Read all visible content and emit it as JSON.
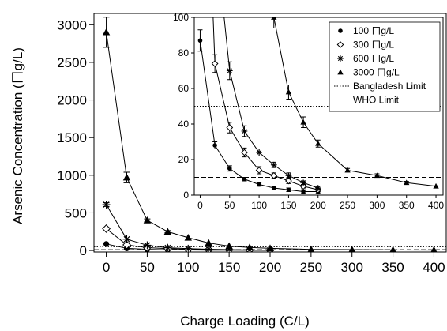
{
  "chart_data": {
    "type": "scatter",
    "xlabel": "Charge Loading (C/L)",
    "ylabel": "Arsenic Concentration (ㄇg/L)",
    "xlim": [
      -15,
      415
    ],
    "ylim": [
      -20,
      3150
    ],
    "xticks": [
      0,
      50,
      100,
      150,
      200,
      250,
      300,
      350,
      400
    ],
    "yticks": [
      0,
      500,
      1000,
      1500,
      2000,
      2500,
      3000
    ],
    "series": [
      {
        "name": "100 ㄇg/L",
        "marker": "circle",
        "x": [
          0,
          25,
          50,
          75,
          100,
          125,
          150,
          175,
          200
        ],
        "y": [
          87,
          28,
          15,
          9,
          6,
          4,
          3,
          2,
          2
        ],
        "err": [
          6,
          2,
          1.5,
          1,
          1,
          1,
          1,
          1,
          1
        ]
      },
      {
        "name": "300 ㄇg/L",
        "marker": "diamond-open",
        "x": [
          0,
          25,
          50,
          75,
          100,
          125,
          150,
          175,
          200
        ],
        "y": [
          290,
          74,
          38,
          24,
          14,
          11,
          8,
          5,
          3
        ],
        "err": [
          15,
          5,
          3,
          2.5,
          2,
          1.5,
          1.5,
          1,
          1
        ]
      },
      {
        "name": "600 ㄇg/L",
        "marker": "asterisk",
        "x": [
          0,
          25,
          50,
          75,
          100,
          125,
          150,
          175,
          200
        ],
        "y": [
          610,
          150,
          70,
          36,
          24,
          17,
          11,
          7,
          4
        ],
        "err": [
          25,
          10,
          5,
          3,
          2,
          1.5,
          1.5,
          1,
          1
        ]
      },
      {
        "name": "3000 ㄇg/L",
        "marker": "triangle",
        "x": [
          0,
          25,
          50,
          75,
          100,
          125,
          150,
          175,
          200,
          250,
          300,
          350,
          400
        ],
        "y": [
          2900,
          970,
          400,
          250,
          170,
          100,
          58,
          41,
          29,
          14,
          11,
          7,
          5
        ],
        "err": [
          200,
          70,
          20,
          15,
          10,
          6,
          4,
          3,
          2,
          1,
          1,
          0.8,
          0.5
        ]
      }
    ],
    "reference_lines": [
      {
        "name": "Bangladesh Limit",
        "style": "dotted",
        "y": 50
      },
      {
        "name": "WHO Limit",
        "style": "dashed",
        "y": 10
      }
    ],
    "inset": {
      "xlim": [
        -10,
        412
      ],
      "ylim": [
        0,
        100
      ],
      "xticks": [
        0,
        50,
        100,
        150,
        200,
        250,
        300,
        350,
        400
      ],
      "yticks": [
        0,
        20,
        40,
        60,
        80,
        100
      ]
    },
    "legend_position": "inset top-right",
    "grid": false
  }
}
